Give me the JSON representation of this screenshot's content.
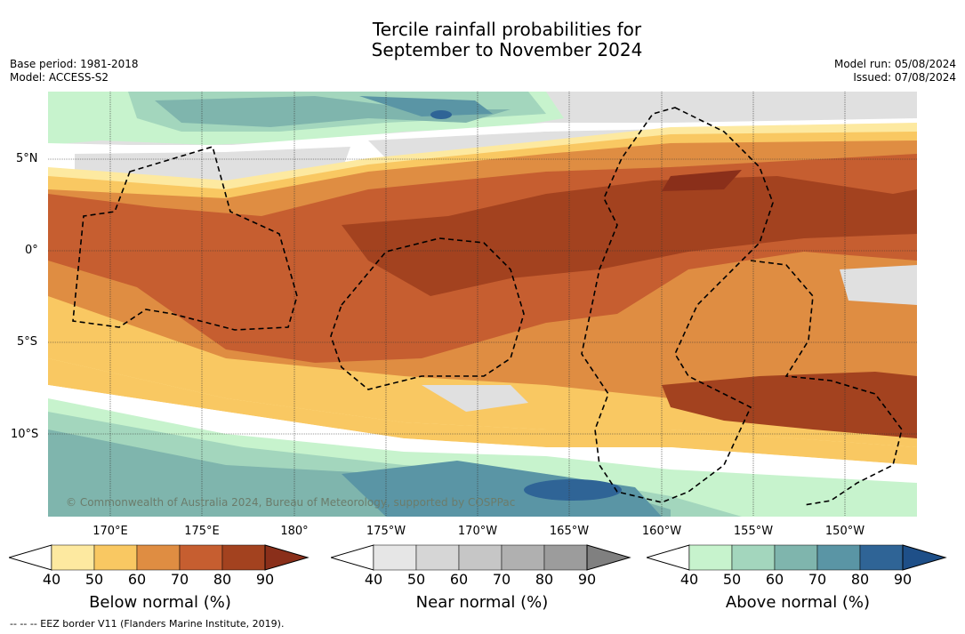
{
  "title_line1": "Tercile rainfall probabilities for",
  "title_line2": "September to November 2024",
  "meta": {
    "base_period": "Base period: 1981-2018",
    "model": "Model: ACCESS-S2",
    "model_run": "Model run: 05/08/2024",
    "issued": "Issued: 07/08/2024"
  },
  "map": {
    "copyright": "© Commonwealth of Australia 2024, Bureau of Meteorology, supported by COSPPac",
    "lat_labels": [
      "5°N",
      "0°",
      "5°S",
      "10°S"
    ],
    "lon_labels": [
      "170°E",
      "175°E",
      "180°",
      "175°W",
      "170°W",
      "165°W",
      "160°W",
      "155°W",
      "150°W"
    ]
  },
  "colorbars": [
    {
      "title": "Below normal (%)",
      "ticks": [
        "40",
        "50",
        "60",
        "70",
        "80",
        "90"
      ],
      "colors": [
        "#ffffff",
        "#fde9a0",
        "#f9c862",
        "#df8d42",
        "#c65e30",
        "#a3421f",
        "#8a2f1a"
      ]
    },
    {
      "title": "Near normal (%)",
      "ticks": [
        "40",
        "50",
        "60",
        "70",
        "80",
        "90"
      ],
      "colors": [
        "#ffffff",
        "#e6e6e6",
        "#d6d6d6",
        "#c6c6c6",
        "#b0b0b0",
        "#9c9c9c",
        "#808080"
      ]
    },
    {
      "title": "Above normal (%)",
      "ticks": [
        "40",
        "50",
        "60",
        "70",
        "80",
        "90"
      ],
      "colors": [
        "#ffffff",
        "#c7f3cd",
        "#a3d6bd",
        "#7fb5ad",
        "#5a95a5",
        "#2f6496",
        "#1e4f88"
      ]
    }
  ],
  "eez_note": "--  --  -- EEZ border V11 (Flanders Marine Institute, 2019)."
}
